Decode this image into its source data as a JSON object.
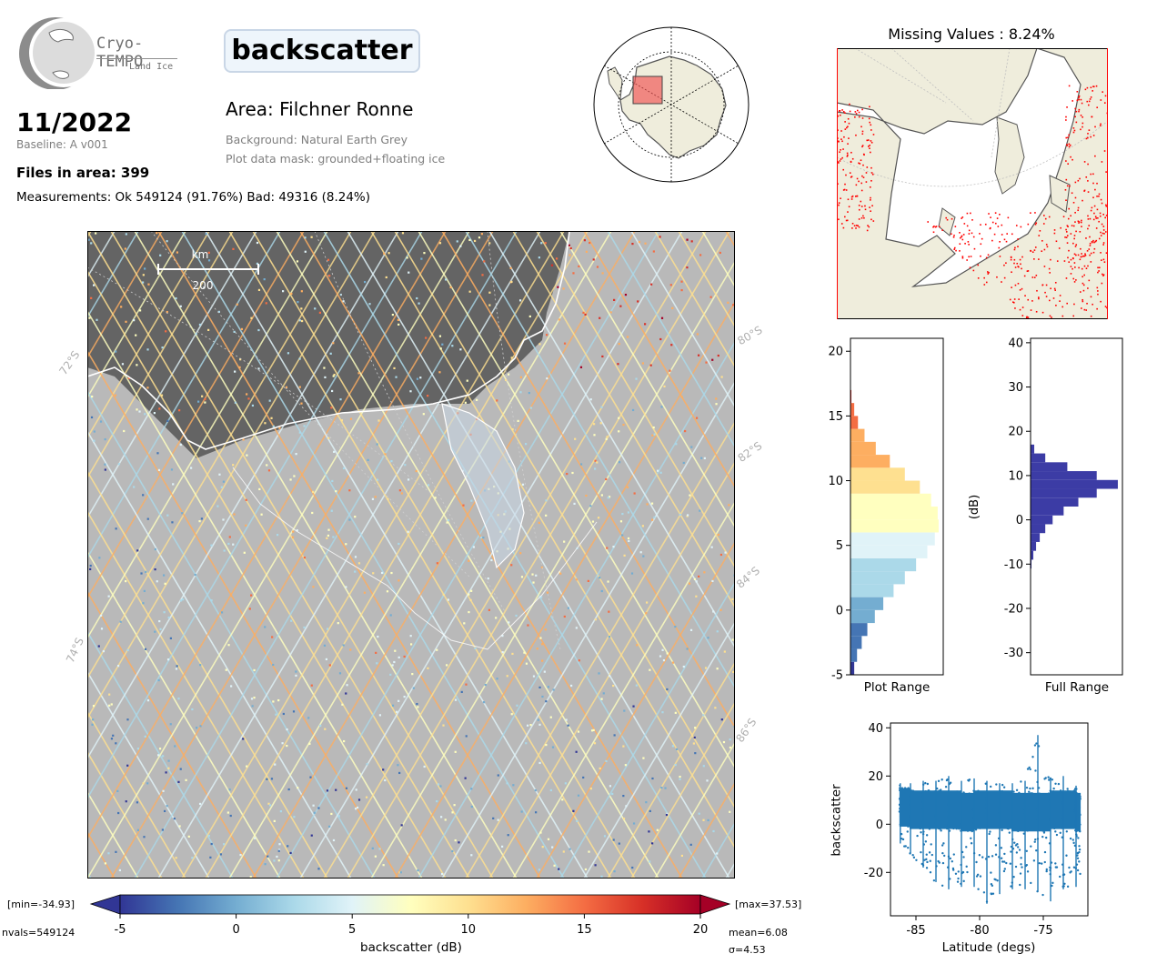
{
  "logo": {
    "name": "Cryo-TEMPO",
    "subtitle": "Land Ice"
  },
  "header": {
    "parameter": "backscatter",
    "date": "11/2022",
    "baseline": "Baseline: A v001",
    "files": "Files in area: 399",
    "measurements": "Measurements: Ok 549124 (91.76%) Bad: 49316 (8.24%)",
    "area": "Area: Filchner Ronne",
    "background": "Background: Natural Earth Grey",
    "mask": "Plot data mask: grounded+floating ice"
  },
  "missing": {
    "title": "Missing Values : 8.24%"
  },
  "map": {
    "scale_unit": "km",
    "scale_value": "200",
    "lat_labels_left": [
      "72°S",
      "74°S"
    ],
    "lat_labels_right": [
      "80°S",
      "82°S",
      "84°S",
      "86°S"
    ]
  },
  "colorbar": {
    "label": "backscatter (dB)",
    "min_label": "[min=-34.93]",
    "max_label": "[max=37.53]",
    "nvals": "nvals=549124",
    "mean": "mean=6.08",
    "sigma": "σ=4.53",
    "ticks": [
      "-5",
      "0",
      "5",
      "10",
      "15",
      "20"
    ],
    "range": [
      -5,
      20
    ],
    "colors": [
      "#313695",
      "#4575b4",
      "#74add1",
      "#abd9e9",
      "#e0f3f8",
      "#ffffbf",
      "#fee090",
      "#fdae61",
      "#f46d43",
      "#d73027",
      "#a50026"
    ]
  },
  "hist_plot": {
    "xlabel": "Plot Range",
    "ticks": [
      "-5",
      "0",
      "5",
      "10",
      "15",
      "20"
    ]
  },
  "hist_full": {
    "xlabel": "Full Range",
    "ylabel": "(dB)",
    "ticks": [
      "-30",
      "-20",
      "-10",
      "0",
      "10",
      "20",
      "30",
      "40"
    ],
    "color": "#3c3ca5"
  },
  "scatter": {
    "xlabel": "Latitude (degs)",
    "ylabel": "backscatter",
    "xticks": [
      "-85",
      "-80",
      "-75"
    ],
    "yticks": [
      "-20",
      "0",
      "20",
      "40"
    ],
    "color": "#1f77b4"
  },
  "chart_data": [
    {
      "type": "bar",
      "title": "",
      "xlabel": "Plot Range",
      "ylabel": "",
      "ylim": [
        -5,
        21
      ],
      "orientation": "horizontal",
      "bin_centers": [
        -4.5,
        -3.5,
        -2.5,
        -1.5,
        -0.5,
        0.5,
        1.5,
        2.5,
        3.5,
        4.5,
        5.5,
        6.5,
        7.5,
        8.5,
        9.5,
        10.5,
        11.5,
        12.5,
        13.5,
        14.5,
        15.5,
        16.5
      ],
      "values": [
        4,
        7,
        12,
        18,
        26,
        35,
        46,
        58,
        70,
        82,
        90,
        94,
        93,
        86,
        74,
        58,
        42,
        27,
        15,
        8,
        4,
        1
      ]
    },
    {
      "type": "bar",
      "title": "",
      "xlabel": "Full Range",
      "ylabel": "(dB)",
      "ylim": [
        -35,
        41
      ],
      "orientation": "horizontal",
      "bin_centers": [
        -10,
        -8,
        -6,
        -4,
        -2,
        0,
        2,
        4,
        6,
        8,
        10,
        12,
        14,
        16
      ],
      "values": [
        1,
        3,
        6,
        10,
        16,
        24,
        36,
        52,
        72,
        95,
        72,
        40,
        16,
        4
      ]
    },
    {
      "type": "scatter",
      "title": "",
      "xlabel": "Latitude (degs)",
      "ylabel": "backscatter",
      "xlim": [
        -87,
        -71.5
      ],
      "ylim": [
        -38,
        42
      ],
      "series": [
        {
          "x": [
            -86.3,
            -85.5,
            -84.5,
            -83.5,
            -82.5,
            -81.5,
            -80.5,
            -79.5,
            -78.5,
            -77.5,
            -76.5,
            -75.5,
            -74.5,
            -73.5,
            -72.5,
            -72.1
          ],
          "y_max": [
            17,
            17,
            18,
            18,
            20,
            18,
            19,
            18,
            17,
            17,
            18,
            37,
            19,
            20,
            16,
            12
          ],
          "y_mean": [
            7,
            6,
            6,
            6,
            6,
            5,
            6,
            6,
            6,
            5,
            5,
            5,
            6,
            6,
            5,
            4
          ],
          "y_min": [
            -8,
            -12,
            -18,
            -24,
            -27,
            -26,
            -26,
            -33,
            -29,
            -27,
            -27,
            -28,
            -32,
            -27,
            -26,
            -22
          ]
        }
      ]
    }
  ]
}
